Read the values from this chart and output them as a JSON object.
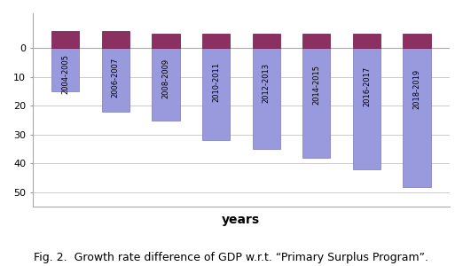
{
  "categories": [
    "2004-2005",
    "2006-2007",
    "2008-2009",
    "2010-2011",
    "2012-2013",
    "2014-2015",
    "2016-2017",
    "2018-2019"
  ],
  "positive_values": [
    6,
    6,
    5,
    5,
    5,
    5,
    5,
    5
  ],
  "negative_values": [
    -15,
    -22,
    -25,
    -32,
    -35,
    -38,
    -42,
    -48
  ],
  "positive_color": "#8B3060",
  "negative_color": "#9999DD",
  "positive_edge": "#6B1040",
  "negative_edge": "#7777BB",
  "bar_width": 0.55,
  "ylim": [
    -55,
    12
  ],
  "yticks": [
    0,
    -10,
    -20,
    -30,
    -40,
    -50
  ],
  "xlabel": "years",
  "xlabel_fontsize": 10,
  "caption": "Fig. 2.  Growth rate difference of GDP w.r.t. “Primary Surplus Program”.",
  "caption_fontsize": 9,
  "background_color": "#ffffff",
  "grid_color": "#cccccc",
  "tick_fontsize": 8,
  "label_fontsize": 6
}
